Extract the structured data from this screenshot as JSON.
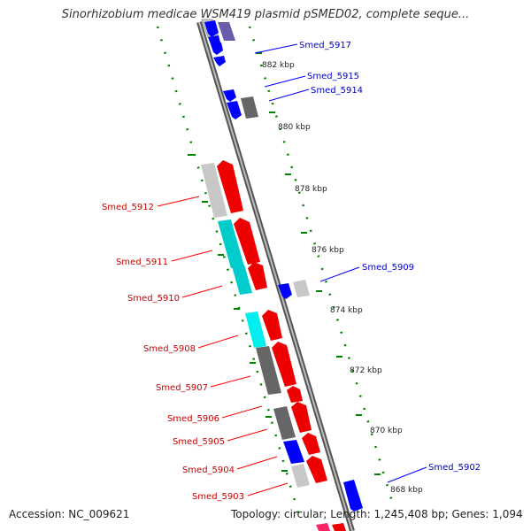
{
  "title": "Sinorhizobium medicae WSM419 plasmid pSMED02, complete seque...",
  "footer": {
    "accession": "Accession: NC_009621",
    "summary": "Topology: circular; Length: 1,245,408 bp; Genes: 1,094"
  },
  "colors": {
    "forward": "#ff0000",
    "reverse": "#0000ff",
    "forward_label": "#cc0000",
    "reverse_label": "#0000cc",
    "cog_gray": "#666666",
    "cog_light": "#c8c8c8",
    "cog_cyan": "#00cccc",
    "cog_purple": "#6a5aaa",
    "backbone": "#888888",
    "tick": "#008000"
  },
  "ticks": [
    "882 kbp",
    "880 kbp",
    "878 kbp",
    "876 kbp",
    "874 kbp",
    "872 kbp",
    "870 kbp",
    "868 kbp"
  ],
  "forward_genes": [
    "Smed_5912",
    "Smed_5911",
    "Smed_5910",
    "Smed_5908",
    "Smed_5907",
    "Smed_5906",
    "Smed_5905",
    "Smed_5904",
    "Smed_5903"
  ],
  "reverse_genes": [
    "Smed_5917",
    "Smed_5915",
    "Smed_5914",
    "Smed_5909",
    "Smed_5902"
  ]
}
